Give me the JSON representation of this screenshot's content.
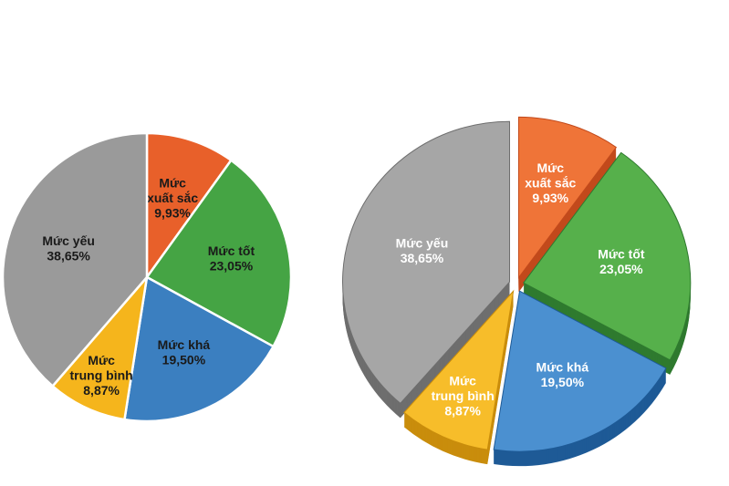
{
  "chart_data": [
    {
      "type": "pie",
      "style": "flat",
      "categories": [
        "Mức xuất sắc",
        "Mức tốt",
        "Mức khá",
        "Mức trung bình",
        "Mức yếu"
      ],
      "values": [
        9.93,
        23.05,
        19.5,
        8.87,
        38.65
      ],
      "value_labels": [
        "9,93%",
        "23,05%",
        "19,50%",
        "8,87%",
        "38,65%"
      ],
      "label_lines": [
        [
          "Mức",
          "xuất sắc"
        ],
        [
          "Mức tốt"
        ],
        [
          "Mức khá"
        ],
        [
          "Mức",
          "trung bình"
        ],
        [
          "Mức yếu"
        ]
      ],
      "colors": [
        "#e8602a",
        "#45a444",
        "#3b7fc0",
        "#f5b51c",
        "#9a9a9a"
      ],
      "label_colors": [
        "#1a1a1a",
        "#1a1a1a",
        "#1a1a1a",
        "#1a1a1a",
        "#1a1a1a"
      ]
    },
    {
      "type": "pie",
      "style": "3d-exploded",
      "categories": [
        "Mức xuất sắc",
        "Mức tốt",
        "Mức khá",
        "Mức trung bình",
        "Mức yếu"
      ],
      "values": [
        9.93,
        23.05,
        19.5,
        8.87,
        38.65
      ],
      "value_labels": [
        "9,93%",
        "23,05%",
        "19,50%",
        "8,87%",
        "38,65%"
      ],
      "label_lines": [
        [
          "Mức",
          "xuất sắc"
        ],
        [
          "Mức tốt"
        ],
        [
          "Mức khá"
        ],
        [
          "Mức",
          "trung bình"
        ],
        [
          "Mức yếu"
        ]
      ],
      "colors": [
        "#ef7438",
        "#56b04b",
        "#4b90d0",
        "#f7bd2a",
        "#a6a6a6"
      ],
      "side_colors": [
        "#c24a1c",
        "#2f7a2f",
        "#1e5a96",
        "#c98d0c",
        "#6e6e6e"
      ],
      "label_colors": [
        "#ffffff",
        "#ffffff",
        "#ffffff",
        "#ffffff",
        "#ffffff"
      ]
    }
  ]
}
